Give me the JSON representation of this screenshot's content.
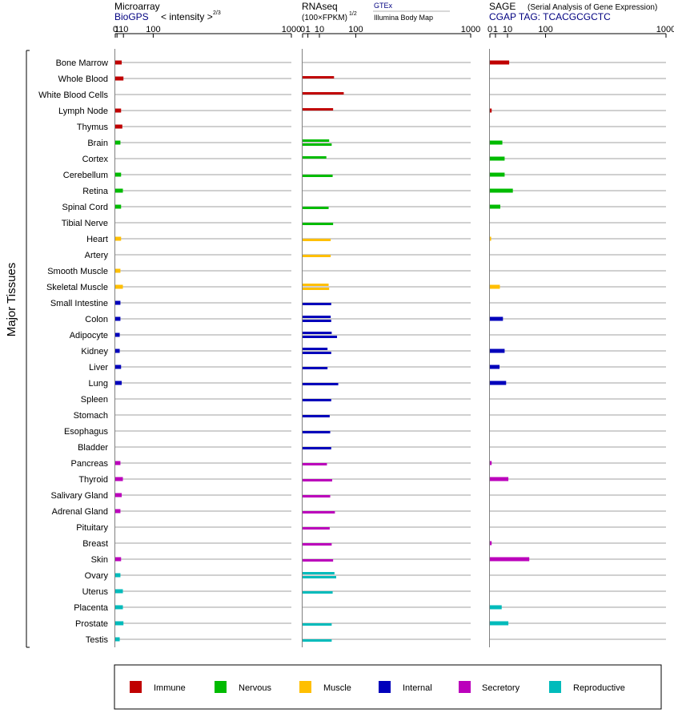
{
  "y_axis_label": "Major Tissues",
  "tissues": [
    "Bone Marrow",
    "Whole Blood",
    "White Blood Cells",
    "Lymph Node",
    "Thymus",
    "Brain",
    "Cortex",
    "Cerebellum",
    "Retina",
    "Spinal Cord",
    "Tibial Nerve",
    "Heart",
    "Artery",
    "Smooth Muscle",
    "Skeletal Muscle",
    "Small Intestine",
    "Colon",
    "Adipocyte",
    "Kidney",
    "Liver",
    "Lung",
    "Spleen",
    "Stomach",
    "Esophagus",
    "Bladder",
    "Pancreas",
    "Thyroid",
    "Salivary Gland",
    "Adrenal Gland",
    "Pituitary",
    "Breast",
    "Skin",
    "Ovary",
    "Uterus",
    "Placenta",
    "Prostate",
    "Testis"
  ],
  "groups": [
    "Immune",
    "Immune",
    "Immune",
    "Immune",
    "Immune",
    "Nervous",
    "Nervous",
    "Nervous",
    "Nervous",
    "Nervous",
    "Nervous",
    "Muscle",
    "Muscle",
    "Muscle",
    "Muscle",
    "Internal",
    "Internal",
    "Internal",
    "Internal",
    "Internal",
    "Internal",
    "Internal",
    "Internal",
    "Internal",
    "Internal",
    "Secretory",
    "Secretory",
    "Secretory",
    "Secretory",
    "Secretory",
    "Secretory",
    "Secretory",
    "Reproductive",
    "Reproductive",
    "Reproductive",
    "Reproductive",
    "Reproductive"
  ],
  "colors": {
    "Immune": "#c00000",
    "Nervous": "#00bb00",
    "Muscle": "#ffbf00",
    "Internal": "#0000bb",
    "Secretory": "#bb00bb",
    "Reproductive": "#00bbbb"
  },
  "legend": [
    "Immune",
    "Nervous",
    "Muscle",
    "Internal",
    "Secretory",
    "Reproductive"
  ],
  "panels": {
    "microarray": {
      "title": "Microarray",
      "subtitle": "BioGPS",
      "note": "< intensity >",
      "exp": "2/3"
    },
    "rnaseq": {
      "title": "RNAseq",
      "subtitle": "(100×FPKM)",
      "exp": "1/2",
      "src1": "GTEx",
      "src2": "Illumina Body Map"
    },
    "sage": {
      "title": "SAGE",
      "note": "(Serial Analysis of Gene Expression)",
      "subtitle": "CGAP TAG: TCACGCGCTC"
    }
  },
  "ticks": [
    "0",
    "1",
    "10",
    "100",
    "1000"
  ],
  "chart_data": [
    {
      "type": "bar",
      "title": "Microarray",
      "xlabel": "< intensity >2/3",
      "xlim": [
        0,
        1000
      ],
      "x_scale": "power-2/3",
      "series": [
        {
          "values": [
            7,
            10,
            null,
            6,
            8,
            5,
            null,
            6,
            9,
            6,
            null,
            6,
            null,
            5,
            9,
            5,
            5,
            4,
            4,
            6,
            7,
            null,
            null,
            null,
            null,
            5,
            9,
            7,
            5,
            null,
            null,
            6,
            5,
            9,
            9,
            10,
            4
          ]
        }
      ]
    },
    {
      "type": "bar",
      "title": "RNAseq",
      "xlabel": "(100×FPKM)1/2",
      "xlim": [
        0,
        1000
      ],
      "x_scale": "power-1/2",
      "sources": [
        "GTEx",
        "Illumina Body Map"
      ],
      "series": [
        {
          "name": "GTEx",
          "values": [
            null,
            35,
            60,
            33,
            null,
            25,
            20,
            null,
            null,
            null,
            null,
            null,
            null,
            null,
            24,
            null,
            28,
            30,
            22,
            null,
            null,
            null,
            null,
            null,
            null,
            null,
            null,
            null,
            null,
            null,
            null,
            null,
            36,
            null,
            null,
            null,
            null
          ]
        },
        {
          "name": "Illumina Body Map",
          "values": [
            null,
            null,
            null,
            null,
            null,
            30,
            null,
            32,
            null,
            24,
            33,
            28,
            28,
            null,
            25,
            29,
            29,
            42,
            29,
            22,
            45,
            29,
            26,
            27,
            29,
            21,
            31,
            27,
            37,
            26,
            30,
            33,
            40,
            32,
            null,
            30,
            30
          ]
        }
      ]
    },
    {
      "type": "bar",
      "title": "SAGE",
      "xlabel": "CGAP TAG: TCACGCGCTC",
      "xlim": [
        0,
        1000
      ],
      "x_scale": "power-1/2",
      "series": [
        {
          "values": [
            12,
            null,
            null,
            0.1,
            null,
            5,
            7,
            7,
            17,
            3.5,
            null,
            0.05,
            null,
            null,
            3.2,
            null,
            5.5,
            null,
            7,
            3,
            8.5,
            null,
            null,
            null,
            null,
            0.1,
            11,
            null,
            null,
            null,
            0.1,
            50,
            null,
            null,
            4.5,
            11,
            null
          ]
        }
      ]
    }
  ]
}
